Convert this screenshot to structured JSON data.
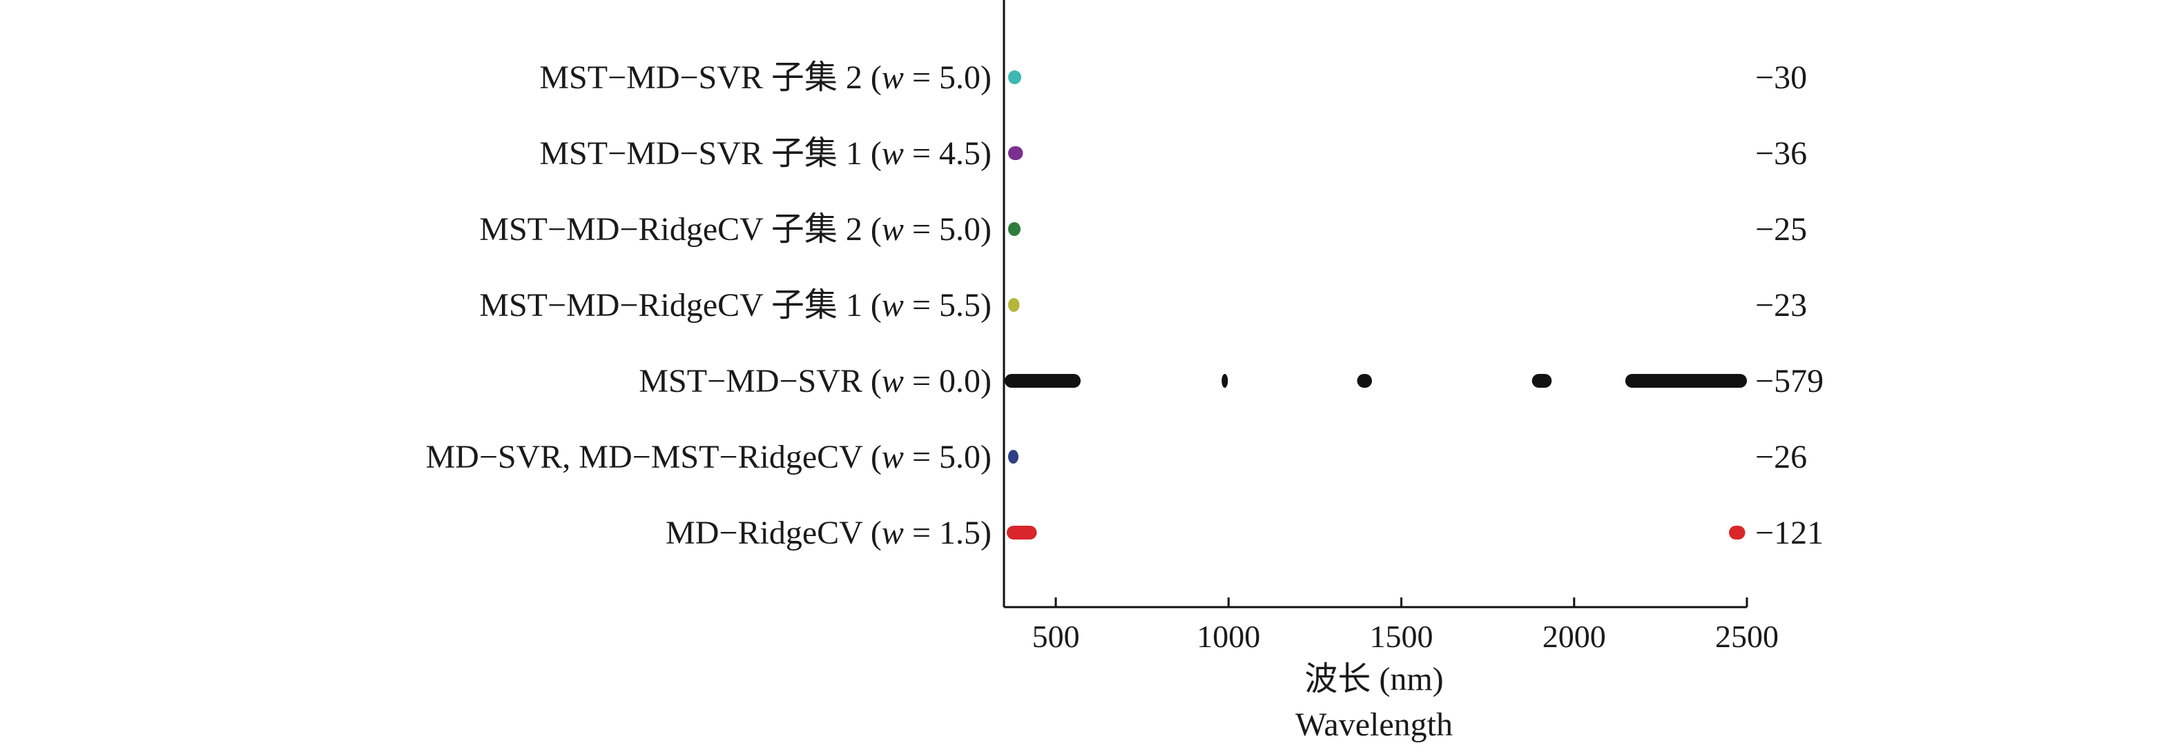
{
  "chart_data": {
    "type": "scatter",
    "title": "",
    "xlabel": "波长 (nm)",
    "xlabel_secondary": "Wavelength",
    "ylabel": "",
    "xlim": [
      350,
      2500
    ],
    "xticks": [
      500,
      1000,
      1500,
      2000,
      2500
    ],
    "grid": false,
    "legend": "none",
    "rows": [
      {
        "label_prefix": "MST−MD−SVR 子集 2 (",
        "w_symbol": "w",
        "label_suffix": " = 5.0)",
        "count": "−30",
        "color": "#3fb7b2",
        "ranges": [
          [
            362,
            400
          ]
        ]
      },
      {
        "label_prefix": "MST−MD−SVR 子集 1 (",
        "w_symbol": "w",
        "label_suffix": " = 4.5)",
        "count": "−36",
        "color": "#7b2f8f",
        "ranges": [
          [
            362,
            405
          ]
        ]
      },
      {
        "label_prefix": "MST−MD−RidgeCV 子集 2 (",
        "w_symbol": "w",
        "label_suffix": " = 5.0)",
        "count": "−25",
        "color": "#2e7d3a",
        "ranges": [
          [
            362,
            398
          ]
        ]
      },
      {
        "label_prefix": "MST−MD−RidgeCV 子集 1 (",
        "w_symbol": "w",
        "label_suffix": " = 5.5)",
        "count": "−23",
        "color": "#b5b53a",
        "ranges": [
          [
            362,
            395
          ]
        ]
      },
      {
        "label_prefix": "MST−MD−SVR (",
        "w_symbol": "w",
        "label_suffix": " = 0.0)",
        "count": "−579",
        "color": "#111111",
        "ranges": [
          [
            352,
            572
          ],
          [
            980,
            998
          ],
          [
            1372,
            1415
          ],
          [
            1878,
            1935
          ],
          [
            2148,
            2500
          ]
        ]
      },
      {
        "label_prefix": "MD−SVR, MD−MST−RidgeCV (",
        "w_symbol": "w",
        "label_suffix": " = 5.0)",
        "count": "−26",
        "color": "#2f3f86",
        "ranges": [
          [
            362,
            392
          ]
        ]
      },
      {
        "label_prefix": "MD−RidgeCV (",
        "w_symbol": "w",
        "label_suffix": " = 1.5)",
        "count": "−121",
        "color": "#d8262a",
        "ranges": [
          [
            358,
            445
          ],
          [
            2448,
            2495
          ]
        ]
      }
    ]
  }
}
